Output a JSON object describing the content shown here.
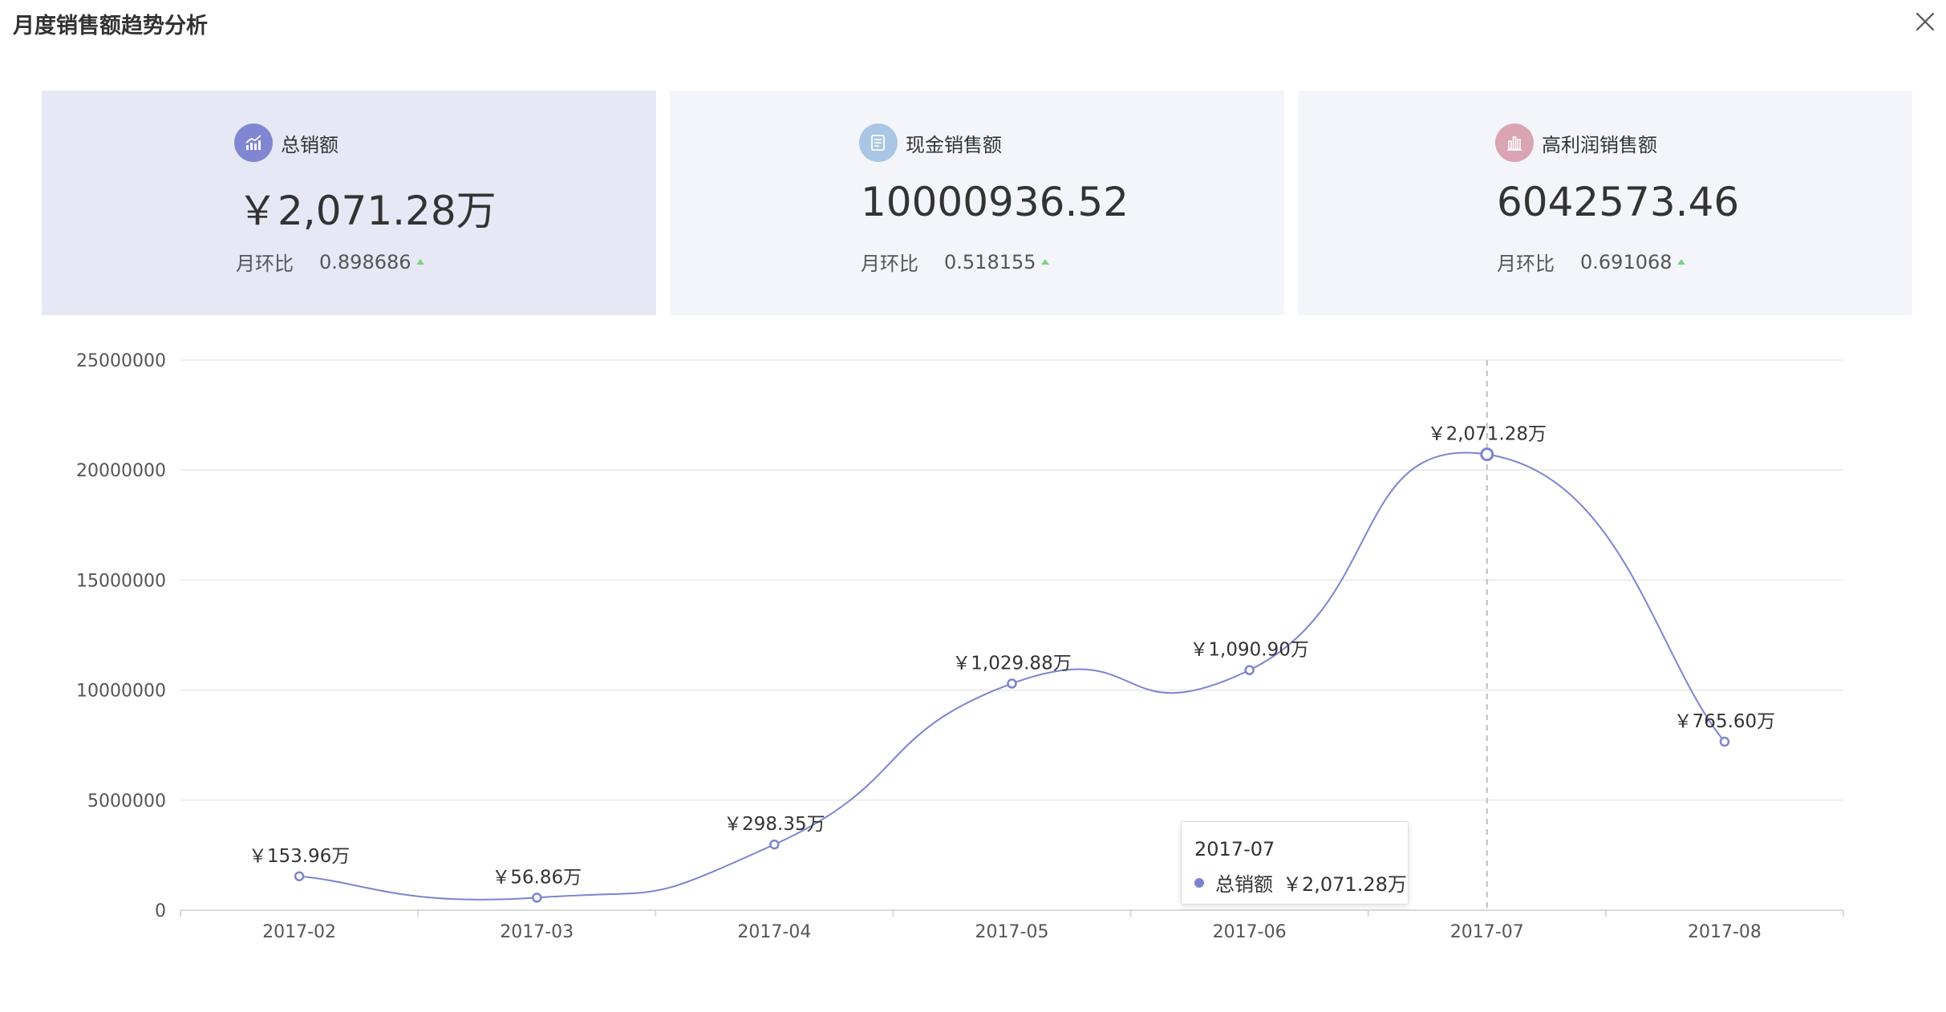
{
  "window": {
    "title": "月度销售额趋势分析"
  },
  "colors": {
    "accent": "#7b84d0",
    "active_card": "#e6e8f5",
    "card": "#f4f5fa",
    "up": "#7ed37e"
  },
  "cards": [
    {
      "label": "总销额",
      "value": "￥2,071.28万",
      "mom_label": "月环比",
      "mom_value": "0.898686",
      "icon": "line-chart-icon",
      "color": "#8186d2"
    },
    {
      "label": "现金销售额",
      "value": "10000936.52",
      "mom_label": "月环比",
      "mom_value": "0.518155",
      "icon": "document-icon",
      "color": "#a9c6e4"
    },
    {
      "label": "高利润销售额",
      "value": "6042573.46",
      "mom_label": "月环比",
      "mom_value": "0.691068",
      "icon": "bar-chart-icon",
      "color": "#dba4b2"
    }
  ],
  "chart_data": {
    "type": "line",
    "smooth": true,
    "categories": [
      "2017-02",
      "2017-03",
      "2017-04",
      "2017-05",
      "2017-06",
      "2017-07",
      "2017-08"
    ],
    "series": [
      {
        "name": "总销额",
        "values": [
          1539600,
          568600,
          2983500,
          10298800,
          10909000,
          20712800,
          7656000
        ],
        "labels": [
          "￥153.96万",
          "￥56.86万",
          "￥298.35万",
          "￥1,029.88万",
          "￥1,090.90万",
          "￥2,071.28万",
          "￥765.60万"
        ]
      }
    ],
    "y_ticks": [
      "0",
      "5000000",
      "10000000",
      "15000000",
      "20000000",
      "25000000"
    ],
    "ylim": [
      0,
      25000000
    ],
    "grid": true,
    "highlight_index": 5
  },
  "tooltip": {
    "title": "2017-07",
    "series_name": "总销额",
    "value": "￥2,071.28万"
  }
}
